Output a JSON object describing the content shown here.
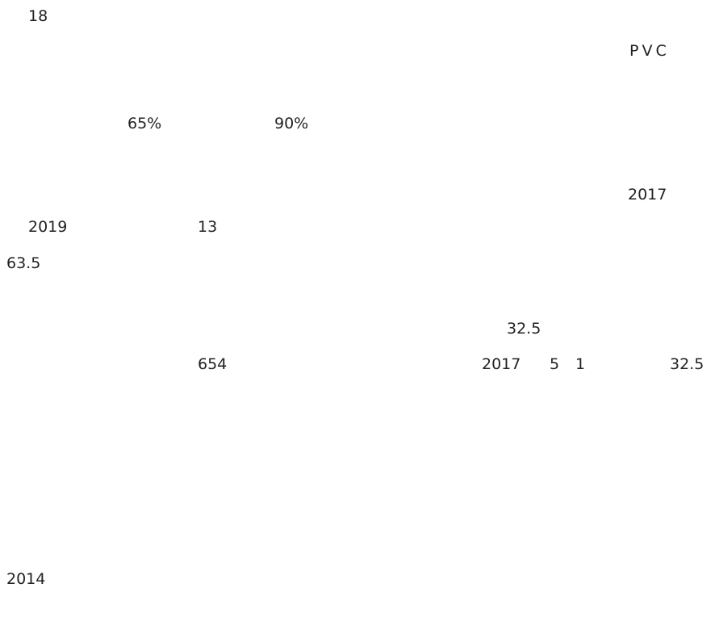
{
  "document": {
    "fragments": [
      "18",
      "PVC",
      "65%",
      "90%",
      "2017",
      "2019",
      "13",
      "63.5",
      "32.5",
      "654",
      "2017",
      "5",
      "1",
      "32.5",
      "2014"
    ]
  }
}
